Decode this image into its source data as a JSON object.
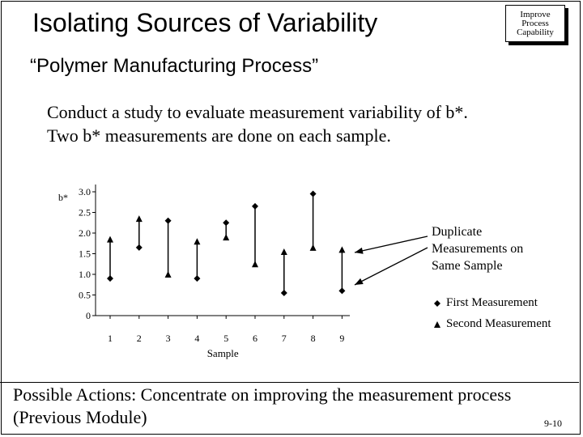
{
  "slide": {
    "title": "Isolating Sources of Variability",
    "badge": [
      "Improve",
      "Process",
      "Capability"
    ],
    "subtitle": "“Polymer Manufacturing Process”",
    "description": [
      "Conduct a study to evaluate measurement variability of b*.",
      "Two b* measurements are done on each sample."
    ],
    "callout": [
      "Duplicate",
      "Measurements on",
      "Same Sample"
    ],
    "actions": [
      "Possible Actions: Concentrate on improving the measurement process",
      "(Previous Module)"
    ],
    "page_number": "9-10"
  },
  "chart_data": {
    "type": "scatter",
    "xlabel": "Sample",
    "ylabel": "b*",
    "x_ticks": [
      "1",
      "2",
      "3",
      "4",
      "5",
      "6",
      "7",
      "8",
      "9"
    ],
    "y_ticks": [
      "0",
      "0.5",
      "1.0",
      "1.5",
      "2.0",
      "2.5",
      "3.0"
    ],
    "ylim": [
      0,
      3.0
    ],
    "xlim": [
      0,
      9
    ],
    "series": [
      {
        "name": "First Measurement",
        "marker": "diamond",
        "x": [
          1,
          2,
          3,
          4,
          5,
          6,
          7,
          8,
          9
        ],
        "values": [
          0.9,
          1.65,
          2.3,
          0.9,
          2.25,
          2.65,
          0.55,
          2.95,
          0.6
        ]
      },
      {
        "name": "Second Measurement",
        "marker": "triangle",
        "x": [
          1,
          2,
          3,
          4,
          5,
          6,
          7,
          8,
          9
        ],
        "values": [
          1.85,
          2.35,
          1.0,
          1.8,
          1.9,
          1.25,
          1.55,
          1.65,
          1.6
        ]
      }
    ],
    "grid": false,
    "legend": "bottom-right",
    "colors": {
      "ink": "#000000"
    }
  }
}
